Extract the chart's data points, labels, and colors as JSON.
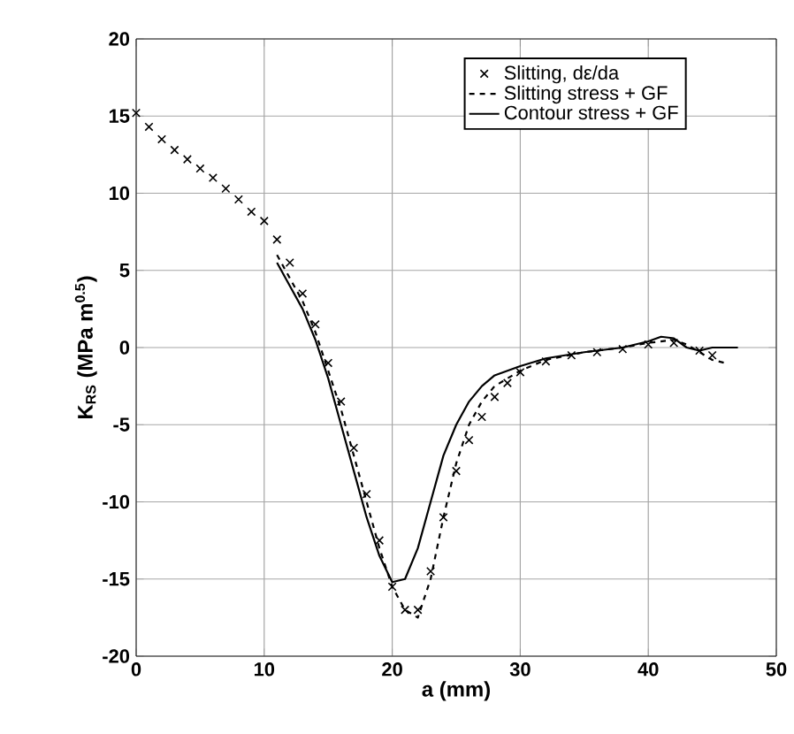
{
  "chart_data": {
    "type": "line",
    "xlabel": "a (mm)",
    "ylabel": "K$_{RS}$ (MPa m$^{0.5}$)",
    "xlim": [
      0,
      50
    ],
    "ylim": [
      -20,
      20
    ],
    "xticks": [
      0,
      10,
      20,
      30,
      40,
      50
    ],
    "yticks": [
      -20,
      -15,
      -10,
      -5,
      0,
      5,
      10,
      15,
      20
    ],
    "grid": true,
    "legend": "top right",
    "series": [
      {
        "name": "Slitting, dε/da",
        "type": "scatter",
        "marker": "cross",
        "color": "#000000",
        "x": [
          0,
          1,
          2,
          3,
          4,
          5,
          6,
          7,
          8,
          9,
          10,
          11,
          12,
          13,
          14,
          15,
          16,
          17,
          18,
          19,
          20,
          21,
          22,
          23,
          24,
          25,
          26,
          27,
          28,
          29,
          30,
          32,
          34,
          36,
          38,
          40,
          42,
          44,
          45
        ],
        "values": [
          15.2,
          14.3,
          13.5,
          12.8,
          12.2,
          11.6,
          11.0,
          10.3,
          9.6,
          8.8,
          8.2,
          7.0,
          5.5,
          3.5,
          1.5,
          -1,
          -3.5,
          -6.5,
          -9.5,
          -12.5,
          -15.5,
          -17,
          -17,
          -14.5,
          -11,
          -8,
          -6,
          -4.5,
          -3.2,
          -2.3,
          -1.6,
          -0.9,
          -0.5,
          -0.3,
          -0.1,
          0.2,
          0.3,
          -0.2,
          -0.5
        ]
      },
      {
        "name": "Slitting stress + GF",
        "type": "line",
        "line_style": "dashed",
        "marker": "none",
        "color": "#000000",
        "x": [
          11,
          12,
          13,
          14,
          15,
          16,
          17,
          18,
          19,
          20,
          21,
          22,
          23,
          24,
          25,
          26,
          27,
          28,
          30,
          32,
          35,
          38,
          40,
          42,
          43,
          44,
          45,
          46
        ],
        "values": [
          6,
          4.5,
          3,
          1,
          -1.5,
          -4,
          -7,
          -10,
          -13,
          -15.5,
          -17,
          -17.5,
          -15,
          -11,
          -7.5,
          -5,
          -3.5,
          -2.5,
          -1.5,
          -0.8,
          -0.3,
          0,
          0.3,
          0.5,
          0.2,
          -0.3,
          -0.8,
          -1
        ]
      },
      {
        "name": "Contour stress + GF",
        "type": "line",
        "line_style": "solid",
        "marker": "none",
        "color": "#000000",
        "x": [
          11,
          12,
          13,
          14,
          15,
          16,
          17,
          18,
          19,
          20,
          21,
          22,
          23,
          24,
          25,
          26,
          27,
          28,
          30,
          32,
          35,
          38,
          40,
          41,
          42,
          43,
          44,
          45,
          47
        ],
        "values": [
          5.5,
          4,
          2.5,
          0.5,
          -2,
          -5,
          -8,
          -11,
          -13.5,
          -15.2,
          -15,
          -13,
          -10,
          -7,
          -5,
          -3.5,
          -2.5,
          -1.8,
          -1.2,
          -0.7,
          -0.3,
          0,
          0.4,
          0.7,
          0.6,
          0,
          -0.2,
          0,
          0
        ]
      }
    ]
  }
}
